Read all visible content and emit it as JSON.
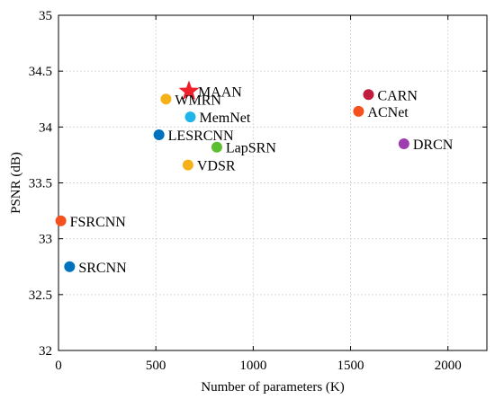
{
  "chart_data": {
    "type": "scatter",
    "title": "",
    "xlabel": "Number of parameters (K)",
    "ylabel": "PSNR (dB)",
    "xlim": [
      0,
      2200
    ],
    "ylim": [
      32,
      35
    ],
    "xticks": [
      0,
      500,
      1000,
      1500,
      2000
    ],
    "yticks": [
      32,
      32.5,
      33,
      33.5,
      34,
      34.5,
      35
    ],
    "xtick_labels": [
      "0",
      "500",
      "1000",
      "1500",
      "2000"
    ],
    "ytick_labels": [
      "32",
      "32.5",
      "33",
      "33.5",
      "34",
      "34.5",
      "35"
    ],
    "grid": true,
    "points": [
      {
        "label": "SRCNN",
        "x": 57,
        "y": 32.75,
        "color": "#0072BD",
        "marker": "circle"
      },
      {
        "label": "FSRCNN",
        "x": 12,
        "y": 33.16,
        "color": "#F4511E",
        "marker": "circle"
      },
      {
        "label": "VDSR",
        "x": 665,
        "y": 33.66,
        "color": "#F5B11A",
        "marker": "circle"
      },
      {
        "label": "LESRCNN",
        "x": 516,
        "y": 33.93,
        "color": "#0072BD",
        "marker": "circle"
      },
      {
        "label": "LapSRN",
        "x": 813,
        "y": 33.82,
        "color": "#5BBF31",
        "marker": "circle"
      },
      {
        "label": "MemNet",
        "x": 677,
        "y": 34.09,
        "color": "#1FB5E8",
        "marker": "circle"
      },
      {
        "label": "WMRN",
        "x": 552,
        "y": 34.25,
        "color": "#F5B11A",
        "marker": "circle"
      },
      {
        "label": "MAAN",
        "x": 670,
        "y": 34.32,
        "color": "#F0202A",
        "marker": "star"
      },
      {
        "label": "CARN",
        "x": 1592,
        "y": 34.29,
        "color": "#C01C3C",
        "marker": "circle"
      },
      {
        "label": "ACNet",
        "x": 1541,
        "y": 34.14,
        "color": "#F4511E",
        "marker": "circle"
      },
      {
        "label": "DRCN",
        "x": 1774,
        "y": 33.85,
        "color": "#9E3DB0",
        "marker": "circle"
      }
    ]
  }
}
